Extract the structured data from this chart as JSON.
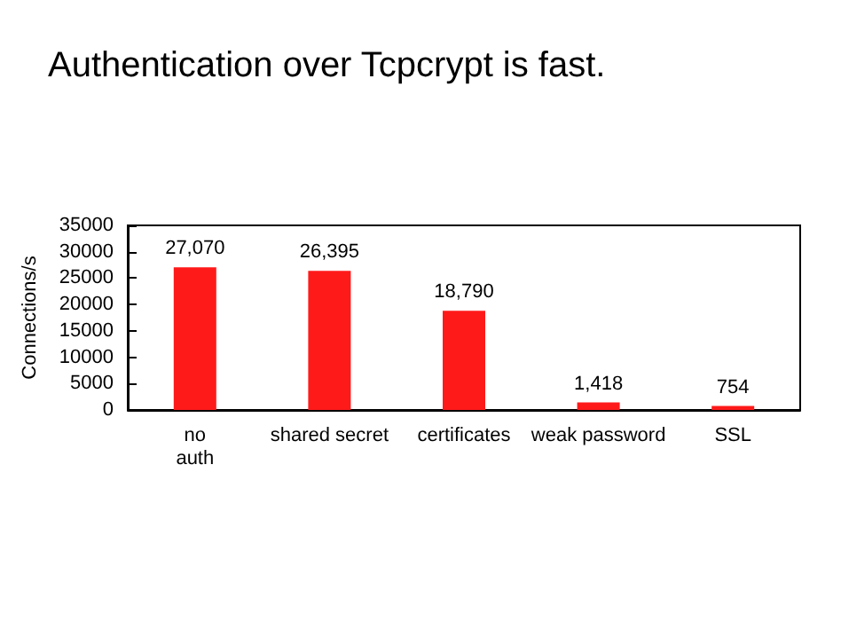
{
  "chart_data": {
    "type": "bar",
    "title": "Authentication over Tcpcrypt is fast.",
    "ylabel": "Connections/s",
    "categories": [
      "no\nauth",
      "shared secret",
      "certificates",
      "weak password",
      "SSL"
    ],
    "values": [
      27070,
      26395,
      18790,
      1418,
      754
    ],
    "value_labels": [
      "27,070",
      "26,395",
      "18,790",
      "1,418",
      "754"
    ],
    "color": "#ff1a1a",
    "ylim": [
      0,
      35000
    ],
    "yticks": [
      0,
      5000,
      10000,
      15000,
      20000,
      25000,
      30000,
      35000
    ],
    "grid": false
  }
}
